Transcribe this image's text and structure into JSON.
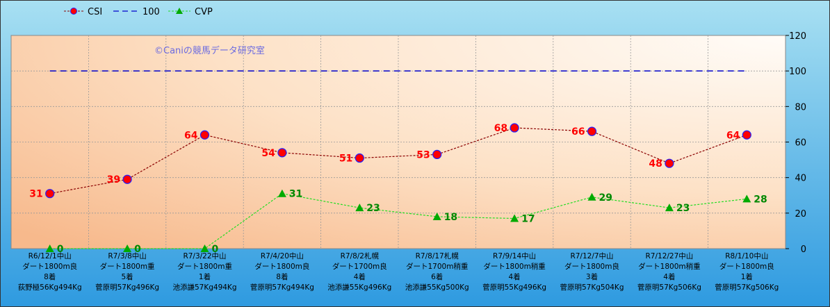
{
  "chart_data": {
    "type": "line",
    "watermark": "©Caniの競馬データ研究室",
    "ylim": [
      0,
      120
    ],
    "yticks": [
      "0",
      "20",
      "40",
      "60",
      "80",
      "100",
      "120"
    ],
    "legend": [
      {
        "label": "CSI"
      },
      {
        "label": "100"
      },
      {
        "label": "CVP"
      }
    ],
    "categories": [
      [
        "R6/12/1中山",
        "ダート1800m良",
        "8着",
        "荻野極56Kg494Kg"
      ],
      [
        "R7/3/8中山",
        "ダート1800m重",
        "5着",
        "菅原明57Kg496Kg"
      ],
      [
        "R7/3/22中山",
        "ダート1800m重",
        "1着",
        "池添謙57Kg494Kg"
      ],
      [
        "R7/4/20中山",
        "ダート1800m良",
        "8着",
        "菅原明57Kg494Kg"
      ],
      [
        "R7/8/2札幌",
        "ダート1700m良",
        "4着",
        "池添謙55Kg496Kg"
      ],
      [
        "R7/8/17札幌",
        "ダート1700m稍重",
        "6着",
        "池添謙55Kg500Kg"
      ],
      [
        "R7/9/14中山",
        "ダート1800m稍重",
        "4着",
        "菅原明55Kg496Kg"
      ],
      [
        "R7/12/7中山",
        "ダート1800m良",
        "3着",
        "菅原明57Kg504Kg"
      ],
      [
        "R7/12/27中山",
        "ダート1800m稍重",
        "4着",
        "菅原明57Kg506Kg"
      ],
      [
        "R8/1/10中山",
        "ダート1800m良",
        "1着",
        "菅原明57Kg506Kg"
      ]
    ],
    "series": [
      {
        "name": "CSI",
        "values": [
          31,
          39,
          64,
          54,
          51,
          53,
          68,
          66,
          48,
          64
        ],
        "color": "#8B0000",
        "marker_fill": "#FF0000",
        "marker_stroke": "#2020FF",
        "label_color": "#FF0000"
      },
      {
        "name": "100",
        "values": [
          100,
          100,
          100,
          100,
          100,
          100,
          100,
          100,
          100,
          100
        ],
        "color": "#0000CC"
      },
      {
        "name": "CVP",
        "values": [
          0,
          0,
          0,
          31,
          23,
          18,
          17,
          29,
          23,
          28
        ],
        "color": "#22DD22",
        "marker_fill": "#00AA00",
        "label_color": "#008800"
      }
    ]
  }
}
